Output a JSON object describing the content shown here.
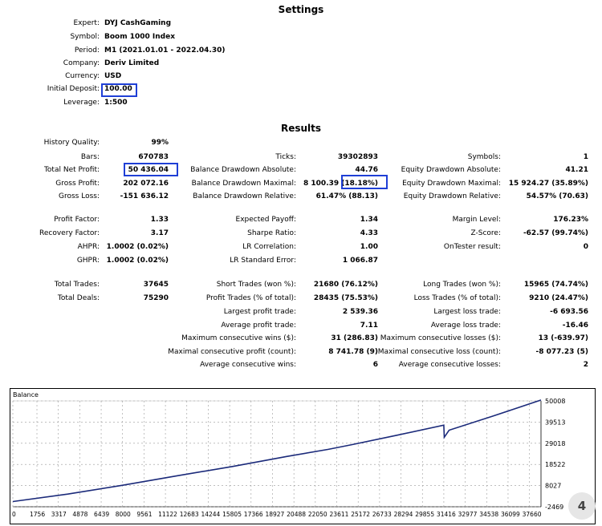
{
  "settings": {
    "title": "Settings",
    "rows": [
      {
        "label": "Expert:",
        "value": "DYJ CashGaming"
      },
      {
        "label": "Symbol:",
        "value": "Boom 1000 Index"
      },
      {
        "label": "Period:",
        "value": "M1 (2021.01.01 - 2022.04.30)"
      },
      {
        "label": "Company:",
        "value": "Deriv Limited"
      },
      {
        "label": "Currency:",
        "value": "USD"
      },
      {
        "label": "Initial Deposit:",
        "value": "100.00"
      },
      {
        "label": "Leverage:",
        "value": "1:500"
      }
    ]
  },
  "results": {
    "title": "Results",
    "history_quality": {
      "label": "History Quality:",
      "value": "99%"
    },
    "col1": [
      {
        "label": "Bars:",
        "value": "670783"
      },
      {
        "label": "Total Net Profit:",
        "value": "50 436.04"
      },
      {
        "label": "Gross Profit:",
        "value": "202 072.16"
      },
      {
        "label": "Gross Loss:",
        "value": "-151 636.12"
      },
      {
        "label": "Profit Factor:",
        "value": "1.33"
      },
      {
        "label": "Recovery Factor:",
        "value": "3.17"
      },
      {
        "label": "AHPR:",
        "value": "1.0002 (0.02%)"
      },
      {
        "label": "GHPR:",
        "value": "1.0002 (0.02%)"
      },
      {
        "label": "Total Trades:",
        "value": "37645"
      },
      {
        "label": "Total Deals:",
        "value": "75290"
      }
    ],
    "col2": [
      {
        "label": "Ticks:",
        "value": "39302893"
      },
      {
        "label": "Balance Drawdown Absolute:",
        "value": "44.76"
      },
      {
        "label": "Balance Drawdown Maximal:",
        "value": "8 100.39 (18.18%)"
      },
      {
        "label": "Balance Drawdown Relative:",
        "value": "61.47% (88.13)"
      },
      {
        "label": "Expected Payoff:",
        "value": "1.34"
      },
      {
        "label": "Sharpe Ratio:",
        "value": "4.33"
      },
      {
        "label": "LR Correlation:",
        "value": "1.00"
      },
      {
        "label": "LR Standard Error:",
        "value": "1 066.87"
      },
      {
        "label": "Short Trades (won %):",
        "value": "21680 (76.12%)"
      },
      {
        "label": "Profit Trades (% of total):",
        "value": "28435 (75.53%)"
      },
      {
        "label": "Largest profit trade:",
        "value": "2 539.36"
      },
      {
        "label": "Average profit trade:",
        "value": "7.11"
      },
      {
        "label": "Maximum consecutive wins ($):",
        "value": "31 (286.83)"
      },
      {
        "label": "Maximal consecutive profit (count):",
        "value": "8 741.78 (9)"
      },
      {
        "label": "Average consecutive wins:",
        "value": "6"
      }
    ],
    "col3": [
      {
        "label": "Symbols:",
        "value": "1"
      },
      {
        "label": "Equity Drawdown Absolute:",
        "value": "41.21"
      },
      {
        "label": "Equity Drawdown Maximal:",
        "value": "15 924.27 (35.89%)"
      },
      {
        "label": "Equity Drawdown Relative:",
        "value": "54.57% (70.63)"
      },
      {
        "label": "Margin Level:",
        "value": "176.23%"
      },
      {
        "label": "Z-Score:",
        "value": "-62.57 (99.74%)"
      },
      {
        "label": "OnTester result:",
        "value": "0"
      },
      {
        "label": "Long Trades (won %):",
        "value": "15965 (74.74%)"
      },
      {
        "label": "Loss Trades (% of total):",
        "value": "9210 (24.47%)"
      },
      {
        "label": "Largest loss trade:",
        "value": "-6 693.56"
      },
      {
        "label": "Average loss trade:",
        "value": "-16.46"
      },
      {
        "label": "Maximum consecutive losses ($):",
        "value": "13 (-639.97)"
      },
      {
        "label": "Maximal consecutive loss (count):",
        "value": "-8 077.23 (5)"
      },
      {
        "label": "Average consecutive losses:",
        "value": "2"
      }
    ]
  },
  "highlight_color": "#1f3fd6",
  "watermark_glyph": "4",
  "chart_data": {
    "type": "line",
    "title": "Balance",
    "y_ticks": [
      50008,
      39513,
      29018,
      18522,
      8027,
      -2469
    ],
    "x_ticks": [
      0,
      1756,
      3317,
      4878,
      6439,
      8000,
      9561,
      11122,
      12683,
      14244,
      15805,
      17366,
      18927,
      20488,
      22050,
      23611,
      25172,
      26733,
      28294,
      29855,
      31416,
      32977,
      34538,
      36099,
      37660
    ],
    "ylim": [
      -2469,
      50008
    ],
    "xlim": [
      0,
      38500
    ],
    "grid": true,
    "line_color": "#1b2a7a",
    "series": [
      {
        "x": [
          0,
          4000,
          8000,
          12000,
          16000,
          20000,
          23000,
          24700,
          28000,
          31416,
          31450,
          31800,
          35000,
          38500
        ],
        "y": [
          100,
          3800,
          8200,
          12900,
          17500,
          22500,
          26000,
          28300,
          33000,
          38000,
          32000,
          35500,
          42500,
          50436
        ]
      }
    ]
  }
}
